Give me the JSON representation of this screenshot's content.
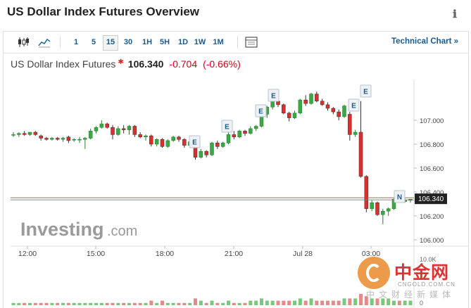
{
  "page": {
    "title": "US Dollar Index Futures Overview",
    "info_icon": "info-icon"
  },
  "toolbar": {
    "timeframes": [
      "1",
      "5",
      "15",
      "30",
      "1H",
      "5H",
      "1D",
      "1W",
      "1M"
    ],
    "active_timeframe": "15",
    "technical_chart_label": "Technical Chart »"
  },
  "quote": {
    "name": "US Dollar Index Futures",
    "price": "106.340",
    "change": "-0.704",
    "change_pct": "(-0.66%)"
  },
  "colors": {
    "up": "#3aa845",
    "down": "#d9302c",
    "accent": "#1a5a8a",
    "volume_down": "#e58a8a",
    "volume_up": "#79c87e"
  },
  "chart_data": {
    "type": "candlestick",
    "y_axis": {
      "min": 106.0,
      "max": 107.3,
      "ticks": [
        "107.000",
        "106.800",
        "106.600",
        "106.400",
        "106.200",
        "106.000"
      ],
      "position": "right"
    },
    "x_axis": {
      "ticks": [
        "12:00",
        "15:00",
        "18:00",
        "21:00",
        "Jul 28",
        "03:00"
      ]
    },
    "current_price": "106.340",
    "event_markers": [
      "E",
      "E",
      "E",
      "E",
      "E",
      "E",
      "E",
      "N"
    ],
    "volume_axis_label": "10.0K",
    "volume_axis_zero": "0",
    "candles": [
      {
        "o": 106.88,
        "h": 106.9,
        "l": 106.86,
        "c": 106.88
      },
      {
        "o": 106.88,
        "h": 106.9,
        "l": 106.86,
        "c": 106.89
      },
      {
        "o": 106.89,
        "h": 106.91,
        "l": 106.87,
        "c": 106.88
      },
      {
        "o": 106.88,
        "h": 106.9,
        "l": 106.87,
        "c": 106.9
      },
      {
        "o": 106.9,
        "h": 106.91,
        "l": 106.87,
        "c": 106.88
      },
      {
        "o": 106.87,
        "h": 106.88,
        "l": 106.83,
        "c": 106.85
      },
      {
        "o": 106.85,
        "h": 106.86,
        "l": 106.83,
        "c": 106.84
      },
      {
        "o": 106.84,
        "h": 106.86,
        "l": 106.83,
        "c": 106.85
      },
      {
        "o": 106.85,
        "h": 106.86,
        "l": 106.83,
        "c": 106.84
      },
      {
        "o": 106.84,
        "h": 106.86,
        "l": 106.82,
        "c": 106.85
      },
      {
        "o": 106.86,
        "h": 106.87,
        "l": 106.81,
        "c": 106.83
      },
      {
        "o": 106.84,
        "h": 106.85,
        "l": 106.82,
        "c": 106.84
      },
      {
        "o": 106.84,
        "h": 106.86,
        "l": 106.81,
        "c": 106.84
      },
      {
        "o": 106.84,
        "h": 106.86,
        "l": 106.76,
        "c": 106.85
      },
      {
        "o": 106.85,
        "h": 106.93,
        "l": 106.84,
        "c": 106.91
      },
      {
        "o": 106.91,
        "h": 106.95,
        "l": 106.89,
        "c": 106.94
      },
      {
        "o": 106.94,
        "h": 107.0,
        "l": 106.93,
        "c": 106.97
      },
      {
        "o": 106.97,
        "h": 106.98,
        "l": 106.93,
        "c": 106.94
      },
      {
        "o": 106.94,
        "h": 106.96,
        "l": 106.84,
        "c": 106.88
      },
      {
        "o": 106.88,
        "h": 106.95,
        "l": 106.87,
        "c": 106.93
      },
      {
        "o": 106.93,
        "h": 106.96,
        "l": 106.89,
        "c": 106.92
      },
      {
        "o": 106.92,
        "h": 106.96,
        "l": 106.88,
        "c": 106.95
      },
      {
        "o": 106.95,
        "h": 106.96,
        "l": 106.86,
        "c": 106.88
      },
      {
        "o": 106.88,
        "h": 106.9,
        "l": 106.85,
        "c": 106.86
      },
      {
        "o": 106.86,
        "h": 106.88,
        "l": 106.83,
        "c": 106.87
      },
      {
        "o": 106.87,
        "h": 106.88,
        "l": 106.78,
        "c": 106.8
      },
      {
        "o": 106.8,
        "h": 106.85,
        "l": 106.78,
        "c": 106.84
      },
      {
        "o": 106.84,
        "h": 106.85,
        "l": 106.77,
        "c": 106.78
      },
      {
        "o": 106.78,
        "h": 106.84,
        "l": 106.77,
        "c": 106.83
      },
      {
        "o": 106.83,
        "h": 106.87,
        "l": 106.82,
        "c": 106.86
      },
      {
        "o": 106.86,
        "h": 106.87,
        "l": 106.82,
        "c": 106.84
      },
      {
        "o": 106.84,
        "h": 106.85,
        "l": 106.77,
        "c": 106.79
      },
      {
        "o": 106.79,
        "h": 106.83,
        "l": 106.77,
        "c": 106.82
      },
      {
        "o": 106.82,
        "h": 106.83,
        "l": 106.67,
        "c": 106.69
      },
      {
        "o": 106.69,
        "h": 106.76,
        "l": 106.68,
        "c": 106.74
      },
      {
        "o": 106.74,
        "h": 106.75,
        "l": 106.69,
        "c": 106.71
      },
      {
        "o": 106.71,
        "h": 106.82,
        "l": 106.7,
        "c": 106.81
      },
      {
        "o": 106.81,
        "h": 106.83,
        "l": 106.76,
        "c": 106.78
      },
      {
        "o": 106.78,
        "h": 106.82,
        "l": 106.77,
        "c": 106.81
      },
      {
        "o": 106.81,
        "h": 106.9,
        "l": 106.8,
        "c": 106.88
      },
      {
        "o": 106.88,
        "h": 106.91,
        "l": 106.84,
        "c": 106.86
      },
      {
        "o": 106.86,
        "h": 106.92,
        "l": 106.85,
        "c": 106.91
      },
      {
        "o": 106.91,
        "h": 106.92,
        "l": 106.87,
        "c": 106.89
      },
      {
        "o": 106.89,
        "h": 106.95,
        "l": 106.88,
        "c": 106.93
      },
      {
        "o": 106.93,
        "h": 106.96,
        "l": 106.91,
        "c": 106.95
      },
      {
        "o": 106.95,
        "h": 107.06,
        "l": 106.94,
        "c": 107.05
      },
      {
        "o": 107.05,
        "h": 107.12,
        "l": 107.02,
        "c": 107.11
      },
      {
        "o": 107.11,
        "h": 107.18,
        "l": 107.09,
        "c": 107.16
      },
      {
        "o": 107.16,
        "h": 107.17,
        "l": 107.11,
        "c": 107.13
      },
      {
        "o": 107.13,
        "h": 107.14,
        "l": 107.05,
        "c": 107.06
      },
      {
        "o": 107.06,
        "h": 107.07,
        "l": 106.99,
        "c": 107.02
      },
      {
        "o": 107.02,
        "h": 107.08,
        "l": 107.01,
        "c": 107.06
      },
      {
        "o": 107.06,
        "h": 107.18,
        "l": 107.05,
        "c": 107.17
      },
      {
        "o": 107.17,
        "h": 107.21,
        "l": 107.12,
        "c": 107.14
      },
      {
        "o": 107.14,
        "h": 107.23,
        "l": 107.13,
        "c": 107.22
      },
      {
        "o": 107.22,
        "h": 107.24,
        "l": 107.15,
        "c": 107.16
      },
      {
        "o": 107.16,
        "h": 107.18,
        "l": 107.12,
        "c": 107.13
      },
      {
        "o": 107.13,
        "h": 107.15,
        "l": 107.08,
        "c": 107.1
      },
      {
        "o": 107.1,
        "h": 107.11,
        "l": 107.05,
        "c": 107.07
      },
      {
        "o": 107.07,
        "h": 107.09,
        "l": 107.0,
        "c": 107.03
      },
      {
        "o": 107.03,
        "h": 107.13,
        "l": 107.02,
        "c": 107.12
      },
      {
        "o": 107.05,
        "h": 107.07,
        "l": 106.83,
        "c": 106.88
      },
      {
        "o": 106.88,
        "h": 106.92,
        "l": 106.86,
        "c": 106.9
      },
      {
        "o": 106.9,
        "h": 107.16,
        "l": 106.52,
        "c": 106.53
      },
      {
        "o": 106.53,
        "h": 106.54,
        "l": 106.23,
        "c": 106.26
      },
      {
        "o": 106.26,
        "h": 106.33,
        "l": 106.24,
        "c": 106.31
      },
      {
        "o": 106.31,
        "h": 106.32,
        "l": 106.2,
        "c": 106.21
      },
      {
        "o": 106.21,
        "h": 106.26,
        "l": 106.13,
        "c": 106.24
      },
      {
        "o": 106.24,
        "h": 106.27,
        "l": 106.2,
        "c": 106.26
      },
      {
        "o": 106.26,
        "h": 106.35,
        "l": 106.25,
        "c": 106.34
      },
      {
        "o": 106.34,
        "h": 106.35,
        "l": 106.31,
        "c": 106.32
      },
      {
        "o": 106.32,
        "h": 106.35,
        "l": 106.31,
        "c": 106.33
      },
      {
        "o": 106.33,
        "h": 106.34,
        "l": 106.31,
        "c": 106.34
      }
    ],
    "volume": [
      1,
      1,
      1,
      1,
      1,
      1,
      1,
      1,
      1,
      1,
      1,
      1,
      1,
      1,
      1,
      1,
      1,
      1,
      1,
      1,
      1,
      1,
      1,
      1,
      1,
      2,
      1,
      2,
      1,
      1,
      1,
      1,
      1,
      3,
      2,
      1,
      2,
      1,
      1,
      2,
      1,
      1,
      1,
      2,
      2,
      3,
      2,
      2,
      2,
      2,
      2,
      2,
      3,
      2,
      3,
      2,
      2,
      2,
      2,
      2,
      3,
      3,
      3,
      5,
      4,
      3,
      3,
      3,
      3,
      2,
      2,
      2,
      2
    ]
  },
  "watermark": {
    "cn": "中金网",
    "en": "CNGOLD.COM.CN",
    "sub": "中文财经新媒体"
  },
  "logo": {
    "text": "Investing",
    "suffix": ".com"
  }
}
